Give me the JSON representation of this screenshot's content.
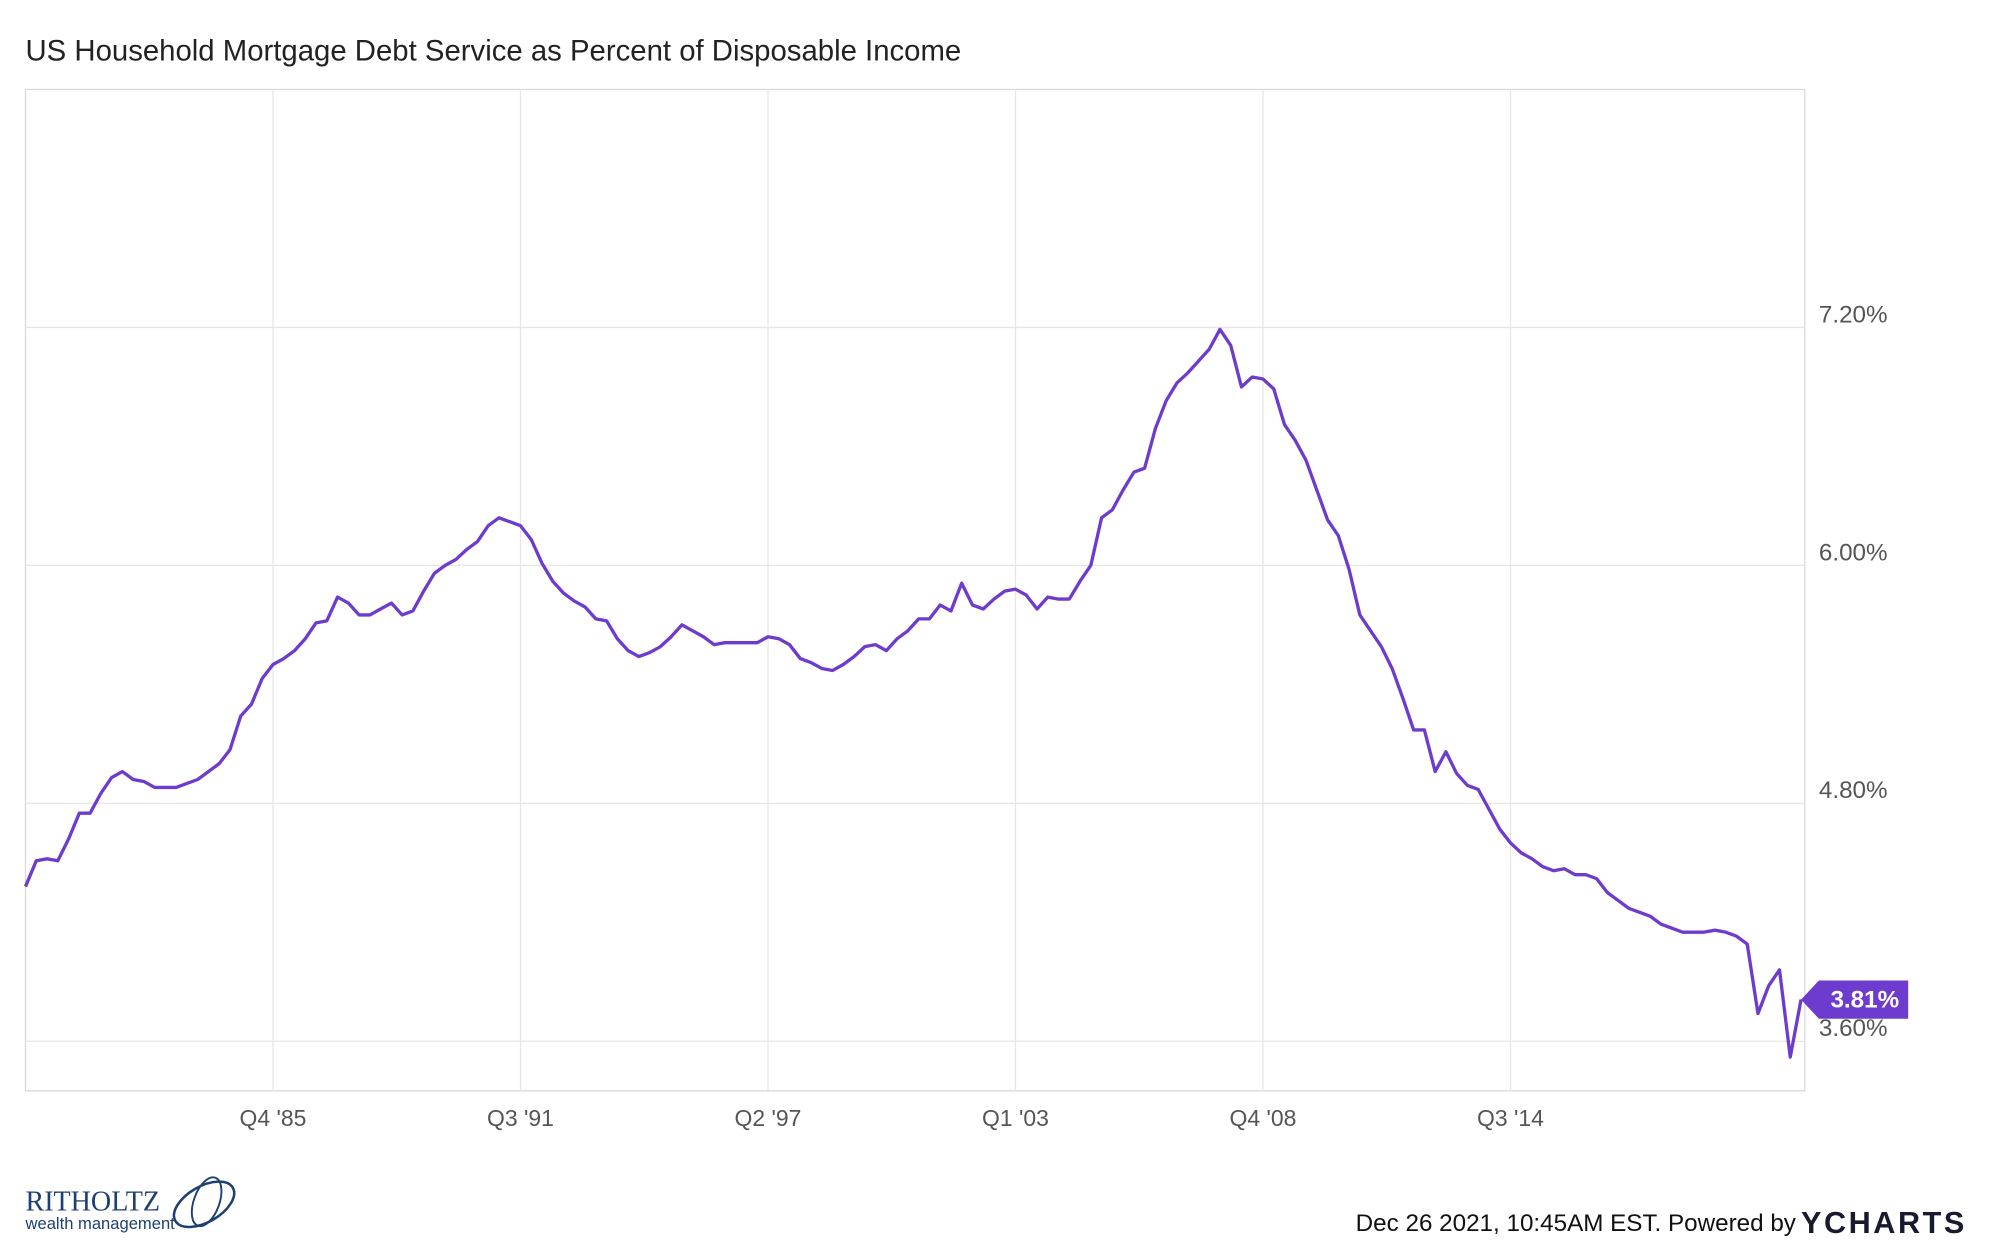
{
  "chart_data": {
    "type": "line",
    "title": "US Household Mortgage Debt Service as Percent of Disposable Income",
    "categories": [
      null,
      null,
      null,
      null,
      null,
      null,
      null,
      null,
      null,
      null,
      null,
      null,
      null,
      null,
      null,
      null,
      null,
      null,
      null,
      null,
      null,
      null,
      null,
      "Q4 '85",
      null,
      null,
      null,
      null,
      null,
      null,
      null,
      null,
      null,
      null,
      null,
      null,
      null,
      null,
      null,
      null,
      null,
      null,
      null,
      null,
      null,
      null,
      "Q3 '91",
      null,
      null,
      null,
      null,
      null,
      null,
      null,
      null,
      null,
      null,
      null,
      null,
      null,
      null,
      null,
      null,
      null,
      null,
      null,
      null,
      null,
      null,
      "Q2 '97",
      null,
      null,
      null,
      null,
      null,
      null,
      null,
      null,
      null,
      null,
      null,
      null,
      null,
      null,
      null,
      null,
      null,
      null,
      null,
      null,
      null,
      null,
      "Q1 '03",
      null,
      null,
      null,
      null,
      null,
      null,
      null,
      null,
      null,
      null,
      null,
      null,
      null,
      null,
      null,
      null,
      null,
      null,
      null,
      null,
      null,
      null,
      "Q4 '08",
      null,
      null,
      null,
      null,
      null,
      null,
      null,
      null,
      null,
      null,
      null,
      null,
      null,
      null,
      null,
      null,
      null,
      null,
      null,
      null,
      null,
      null,
      "Q3 '14",
      null,
      null,
      null,
      null,
      null,
      null,
      null,
      null,
      null,
      null,
      null,
      null,
      null,
      null,
      null,
      null,
      null,
      null,
      null,
      null,
      null,
      null,
      null,
      null,
      null,
      null,
      null
    ],
    "series": [
      {
        "name": "US Household Mortgage Debt Service as Percent of Disposable Income",
        "color": "#6d3ccf",
        "values": [
          4.38,
          4.51,
          4.52,
          4.51,
          4.62,
          4.75,
          4.75,
          4.85,
          4.93,
          4.96,
          4.92,
          4.91,
          4.88,
          4.88,
          4.88,
          4.9,
          4.92,
          4.96,
          5.0,
          5.07,
          5.24,
          5.3,
          5.43,
          5.5,
          5.53,
          5.57,
          5.63,
          5.71,
          5.72,
          5.84,
          5.81,
          5.75,
          5.75,
          5.78,
          5.81,
          5.75,
          5.77,
          5.87,
          5.96,
          6.0,
          6.03,
          6.08,
          6.12,
          6.2,
          6.24,
          6.22,
          6.2,
          6.13,
          6.01,
          5.92,
          5.86,
          5.82,
          5.79,
          5.73,
          5.72,
          5.63,
          5.57,
          5.54,
          5.56,
          5.59,
          5.64,
          5.7,
          5.67,
          5.64,
          5.6,
          5.61,
          5.61,
          5.61,
          5.61,
          5.64,
          5.63,
          5.6,
          5.53,
          5.51,
          5.48,
          5.47,
          5.5,
          5.54,
          5.59,
          5.6,
          5.57,
          5.63,
          5.67,
          5.73,
          5.73,
          5.8,
          5.77,
          5.91,
          5.8,
          5.78,
          5.83,
          5.87,
          5.88,
          5.85,
          5.78,
          5.84,
          5.83,
          5.83,
          5.92,
          6.0,
          6.24,
          6.28,
          6.38,
          6.47,
          6.49,
          6.69,
          6.83,
          6.92,
          6.97,
          7.03,
          7.09,
          7.19,
          7.11,
          6.9,
          6.95,
          6.94,
          6.89,
          6.71,
          6.63,
          6.53,
          6.38,
          6.23,
          6.15,
          5.98,
          5.75,
          5.67,
          5.59,
          5.48,
          5.33,
          5.17,
          5.17,
          4.96,
          5.06,
          4.95,
          4.89,
          4.87,
          4.77,
          4.67,
          4.6,
          4.55,
          4.52,
          4.48,
          4.46,
          4.47,
          4.44,
          4.44,
          4.42,
          4.35,
          4.31,
          4.27,
          4.25,
          4.23,
          4.19,
          4.17,
          4.15,
          4.15,
          4.15,
          4.16,
          4.15,
          4.13,
          4.09,
          3.74,
          3.88,
          3.96,
          3.52,
          3.81
        ],
        "value_labels": [
          null,
          null,
          null,
          null,
          null,
          null,
          null,
          null,
          null,
          null,
          null,
          null,
          null,
          null,
          null,
          null,
          null,
          null,
          null,
          null,
          null,
          null,
          null,
          null,
          null,
          null,
          null,
          null,
          null,
          null,
          null,
          null,
          null,
          null,
          null,
          null,
          null,
          null,
          null,
          null,
          null,
          null,
          null,
          null,
          null,
          null,
          null,
          null,
          null,
          null,
          null,
          null,
          null,
          null,
          null,
          null,
          null,
          null,
          null,
          null,
          null,
          null,
          null,
          null,
          null,
          null,
          null,
          null,
          null,
          null,
          null,
          null,
          null,
          null,
          null,
          null,
          null,
          null,
          null,
          null,
          null,
          null,
          null,
          null,
          null,
          null,
          null,
          null,
          null,
          null,
          null,
          null,
          null,
          null,
          null,
          null,
          null,
          null,
          null,
          null,
          null,
          null,
          null,
          null,
          null,
          null,
          null,
          null,
          null,
          null,
          null,
          null,
          null,
          null,
          null,
          null,
          null,
          null,
          null,
          null,
          null,
          null,
          null,
          null,
          null,
          null,
          null,
          null,
          null,
          null,
          null,
          null,
          null,
          null,
          null,
          null,
          null,
          null,
          null,
          null,
          null,
          null,
          null,
          null,
          null,
          null,
          null,
          null,
          null,
          null,
          null,
          null,
          null,
          null,
          null,
          null,
          null,
          null,
          null,
          null,
          null,
          null,
          null,
          null,
          null,
          "3.81%"
        ]
      }
    ],
    "ylim": [
      3.35,
      8.4
    ],
    "yticks": [
      {
        "value": 3.6,
        "label": "3.60%"
      },
      {
        "value": 4.8,
        "label": "4.80%"
      },
      {
        "value": 6.0,
        "label": "6.00%"
      },
      {
        "value": 7.2,
        "label": "7.20%"
      }
    ],
    "grid": true,
    "logo_text": "RITHOLTZ",
    "logo_subtext": "wealth management",
    "footer": "Dec 26 2021, 10:45AM EST. Powered by",
    "brand": "YCHARTS"
  }
}
